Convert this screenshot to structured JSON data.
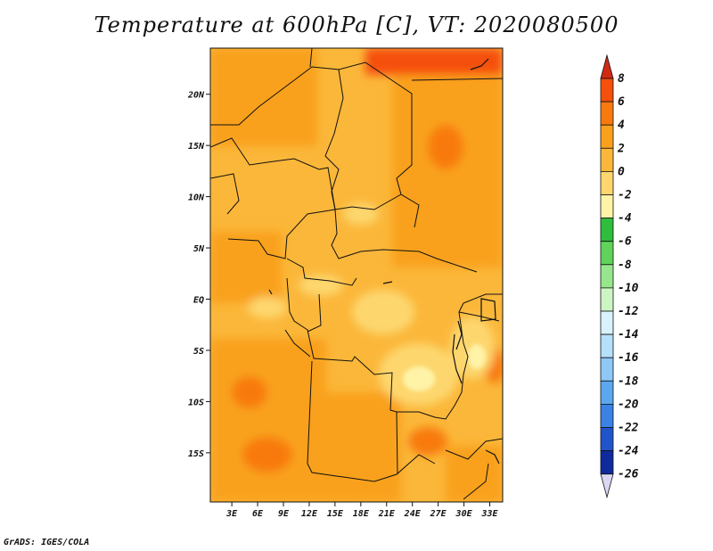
{
  "title": "Temperature at 600hPa [C], VT: 2020080500",
  "credit": "GrADS: IGES/COLA",
  "map": {
    "variable": "Temperature",
    "level": "600hPa",
    "units": "C",
    "valid_time": "2020080500",
    "lat_ticks": [
      {
        "value": 20,
        "label": "20N"
      },
      {
        "value": 15,
        "label": "15N"
      },
      {
        "value": 10,
        "label": "10N"
      },
      {
        "value": 5,
        "label": "5N"
      },
      {
        "value": 0,
        "label": "EQ"
      },
      {
        "value": -5,
        "label": "5S"
      },
      {
        "value": -10,
        "label": "10S"
      },
      {
        "value": -15,
        "label": "15S"
      }
    ],
    "lon_ticks": [
      {
        "value": 3,
        "label": "3E"
      },
      {
        "value": 6,
        "label": "6E"
      },
      {
        "value": 9,
        "label": "9E"
      },
      {
        "value": 12,
        "label": "12E"
      },
      {
        "value": 15,
        "label": "15E"
      },
      {
        "value": 18,
        "label": "18E"
      },
      {
        "value": 21,
        "label": "21E"
      },
      {
        "value": 24,
        "label": "24E"
      },
      {
        "value": 27,
        "label": "27E"
      },
      {
        "value": 30,
        "label": "30E"
      },
      {
        "value": 33,
        "label": "33E"
      }
    ],
    "lon_range": [
      0.5,
      34.5
    ],
    "lat_range": [
      -19.8,
      24.5
    ]
  },
  "colorbar": {
    "levels": [
      "8",
      "6",
      "4",
      "2",
      "0",
      "-2",
      "-4",
      "-6",
      "-8",
      "-10",
      "-12",
      "-14",
      "-16",
      "-18",
      "-20",
      "-22",
      "-24",
      "-26"
    ],
    "colors": [
      "#e02b0e",
      "#f5500c",
      "#f87a0f",
      "#f9a11d",
      "#fbb73a",
      "#fdd76e",
      "#fff3a8",
      "#2ebd3c",
      "#5fd35a",
      "#97e68d",
      "#cdf5c4",
      "#d9f2fd",
      "#b4e0fb",
      "#8dc8f6",
      "#5ba8ef",
      "#3b82e4",
      "#2055c9",
      "#0f2a9c",
      "#07146b"
    ],
    "top_arrow_color": "#d12a13",
    "bottom_arrow_color": "#dcd6f5"
  }
}
